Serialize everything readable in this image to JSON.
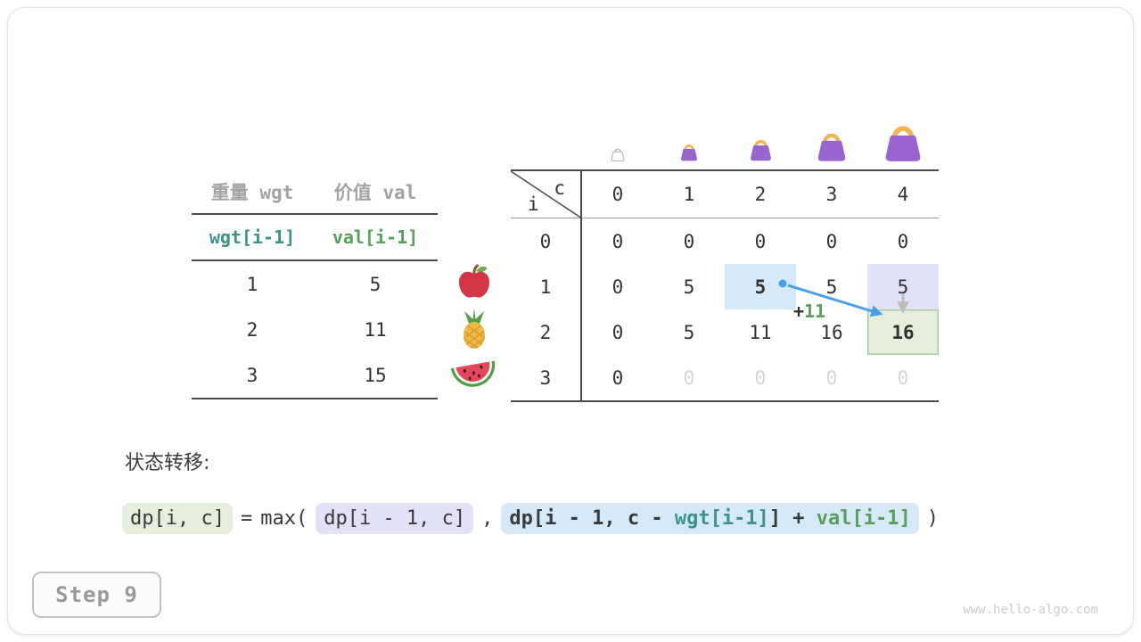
{
  "colors": {
    "text_dark": "#333333",
    "text_gray_header": "#a3a3a3",
    "teal": "#3b9489",
    "green": "#57a05a",
    "dim": "#d4d4d4",
    "hl_blue": "#d6e9f8",
    "hl_lavender": "#e1e1f7",
    "hl_green": "#e6efde",
    "hl_green_border": "#a9c9a2",
    "arrow_blue": "#4aa0e8",
    "arrow_gray": "#bdbdbd",
    "line_dark": "#4a4a4a",
    "line_gray": "#9a9a9a",
    "bag_purple": "#9865d0",
    "bag_handle": "#f2b353"
  },
  "item_table": {
    "col_headers": [
      "重量 wgt",
      "价值 val"
    ],
    "index_headers": [
      "wgt[i-1]",
      "val[i-1]"
    ],
    "rows": [
      [
        "1",
        "5"
      ],
      [
        "2",
        "11"
      ],
      [
        "3",
        "15"
      ]
    ]
  },
  "dp_table": {
    "corner": {
      "row_var": "i",
      "col_var": "c"
    },
    "col_headers": [
      "0",
      "1",
      "2",
      "3",
      "4"
    ],
    "row_headers": [
      "0",
      "1",
      "2",
      "3"
    ],
    "cells": [
      [
        {
          "v": "0"
        },
        {
          "v": "0"
        },
        {
          "v": "0"
        },
        {
          "v": "0"
        },
        {
          "v": "0"
        }
      ],
      [
        {
          "v": "0"
        },
        {
          "v": "5"
        },
        {
          "v": "5",
          "hl": "blue",
          "bold": true
        },
        {
          "v": "5"
        },
        {
          "v": "5",
          "hl": "lavender"
        }
      ],
      [
        {
          "v": "0"
        },
        {
          "v": "5"
        },
        {
          "v": "11"
        },
        {
          "v": "16"
        },
        {
          "v": "16",
          "hl": "green",
          "bold": true
        }
      ],
      [
        {
          "v": "0"
        },
        {
          "v": "0",
          "dim": true
        },
        {
          "v": "0",
          "dim": true
        },
        {
          "v": "0",
          "dim": true
        },
        {
          "v": "0",
          "dim": true
        }
      ]
    ]
  },
  "annotations": {
    "add_plus": "+",
    "add_value": "11"
  },
  "transition": {
    "label": "状态转移:",
    "lhs": "dp[i, c]",
    "eq": "=",
    "max_open": "max(",
    "arg1": "dp[i - 1, c]",
    "comma": ",",
    "arg2_prefix": "dp[i - 1, c - ",
    "arg2_wgt": "wgt[i-1]",
    "arg2_mid": "] + ",
    "arg2_val": "val[i-1]",
    "close_paren": ")"
  },
  "step": {
    "label": "Step 9"
  },
  "footer": {
    "watermark": "www.hello-algo.com"
  },
  "icons": {
    "fruits": [
      "apple-icon",
      "pineapple-icon",
      "watermelon-icon"
    ],
    "bags": [
      "bag-empty-icon",
      "bag-icon-1",
      "bag-icon-2",
      "bag-icon-3",
      "bag-icon-4"
    ]
  }
}
